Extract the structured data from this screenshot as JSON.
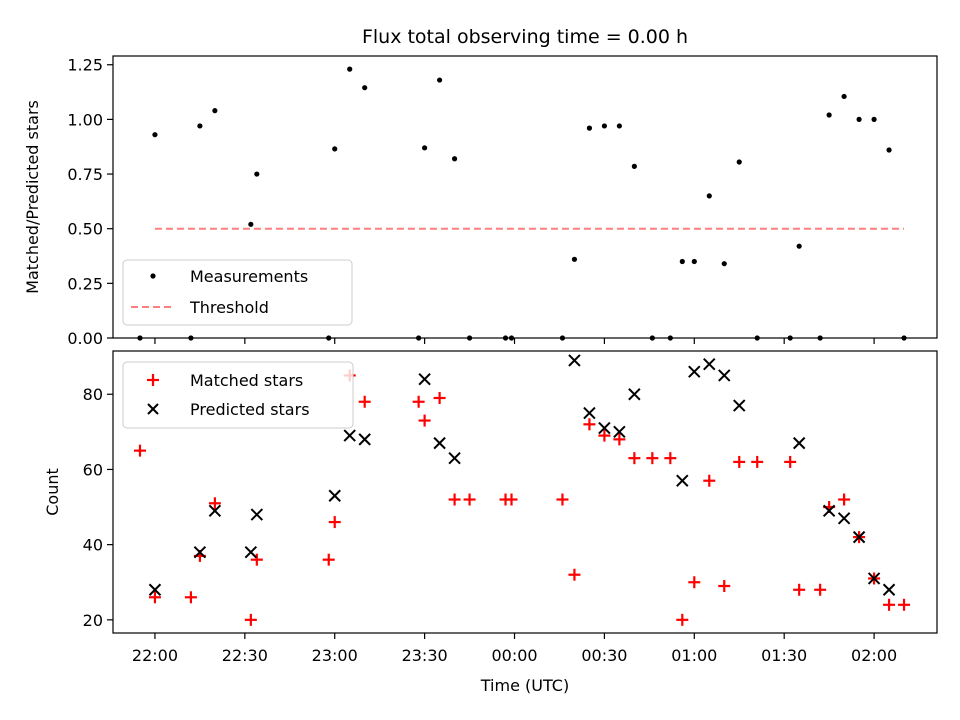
{
  "chart_data": [
    {
      "type": "scatter",
      "title": "Flux total observing time = 0.00 h",
      "xlabel": "",
      "ylabel": "Matched/Predicted stars",
      "ylim": [
        0,
        1.29
      ],
      "yticks": [
        "0.00",
        "0.25",
        "0.50",
        "0.75",
        "1.00",
        "1.25"
      ],
      "legend_placement": "bottom-left",
      "series": [
        {
          "name": "Measurements",
          "marker": "dot",
          "color": "#000000",
          "points": [
            [
              "21:55",
              0.0
            ],
            [
              "22:00",
              0.93
            ],
            [
              "22:12",
              0.0
            ],
            [
              "22:15",
              0.97
            ],
            [
              "22:20",
              1.04
            ],
            [
              "22:32",
              0.52
            ],
            [
              "22:34",
              0.75
            ],
            [
              "22:58",
              0.0
            ],
            [
              "23:00",
              0.865
            ],
            [
              "23:05",
              1.23
            ],
            [
              "23:10",
              1.145
            ],
            [
              "23:28",
              0.0
            ],
            [
              "23:30",
              0.87
            ],
            [
              "23:35",
              1.18
            ],
            [
              "23:40",
              0.82
            ],
            [
              "23:45",
              0.0
            ],
            [
              "23:57",
              0.0
            ],
            [
              "23:59",
              0.0
            ],
            [
              "00:16",
              0.0
            ],
            [
              "00:20",
              0.36
            ],
            [
              "00:25",
              0.96
            ],
            [
              "00:30",
              0.97
            ],
            [
              "00:35",
              0.97
            ],
            [
              "00:40",
              0.785
            ],
            [
              "00:46",
              0.0
            ],
            [
              "00:52",
              0.0
            ],
            [
              "00:56",
              0.35
            ],
            [
              "01:00",
              0.35
            ],
            [
              "01:05",
              0.65
            ],
            [
              "01:10",
              0.34
            ],
            [
              "01:15",
              0.805
            ],
            [
              "01:21",
              0.0
            ],
            [
              "01:32",
              0.0
            ],
            [
              "01:35",
              0.42
            ],
            [
              "01:42",
              0.0
            ],
            [
              "01:45",
              1.02
            ],
            [
              "01:50",
              1.105
            ],
            [
              "01:55",
              1.0
            ],
            [
              "02:00",
              1.0
            ],
            [
              "02:05",
              0.86
            ],
            [
              "02:10",
              0.0
            ]
          ]
        },
        {
          "name": "Threshold",
          "line_style": "dashed",
          "color": "#ff7f7f",
          "points": [
            [
              "22:00",
              0.5
            ],
            [
              "02:10",
              0.5
            ]
          ]
        }
      ]
    },
    {
      "type": "scatter",
      "title": "",
      "xlabel": "Time (UTC)",
      "ylabel": "Count",
      "ylim": [
        16.5,
        91.5
      ],
      "yticks": [
        "20",
        "40",
        "60",
        "80"
      ],
      "xlim": [
        "21:46",
        "02:21"
      ],
      "xticks": [
        "22:00",
        "22:30",
        "23:00",
        "23:30",
        "00:00",
        "00:30",
        "01:00",
        "01:30",
        "02:00"
      ],
      "legend_placement": "top-left",
      "series": [
        {
          "name": "Matched stars",
          "marker": "plus",
          "color": "#ff0000",
          "points": [
            [
              "21:55",
              65
            ],
            [
              "22:00",
              26
            ],
            [
              "22:12",
              26
            ],
            [
              "22:15",
              37
            ],
            [
              "22:20",
              51
            ],
            [
              "22:32",
              20
            ],
            [
              "22:34",
              36
            ],
            [
              "22:58",
              36
            ],
            [
              "23:00",
              46
            ],
            [
              "23:05",
              85
            ],
            [
              "23:10",
              78
            ],
            [
              "23:28",
              78
            ],
            [
              "23:30",
              73
            ],
            [
              "23:35",
              79
            ],
            [
              "23:40",
              52
            ],
            [
              "23:45",
              52
            ],
            [
              "23:57",
              52
            ],
            [
              "23:59",
              52
            ],
            [
              "00:16",
              52
            ],
            [
              "00:20",
              32
            ],
            [
              "00:25",
              72
            ],
            [
              "00:30",
              69
            ],
            [
              "00:35",
              68
            ],
            [
              "00:40",
              63
            ],
            [
              "00:46",
              63
            ],
            [
              "00:52",
              63
            ],
            [
              "00:56",
              20
            ],
            [
              "01:00",
              30
            ],
            [
              "01:05",
              57
            ],
            [
              "01:10",
              29
            ],
            [
              "01:15",
              62
            ],
            [
              "01:21",
              62
            ],
            [
              "01:32",
              62
            ],
            [
              "01:35",
              28
            ],
            [
              "01:42",
              28
            ],
            [
              "01:45",
              50
            ],
            [
              "01:50",
              52
            ],
            [
              "01:55",
              42
            ],
            [
              "02:00",
              31
            ],
            [
              "02:05",
              24
            ],
            [
              "02:10",
              24
            ]
          ]
        },
        {
          "name": "Predicted stars",
          "marker": "x",
          "color": "#000000",
          "points": [
            [
              "22:00",
              28
            ],
            [
              "22:15",
              38
            ],
            [
              "22:20",
              49
            ],
            [
              "22:32",
              38
            ],
            [
              "22:34",
              48
            ],
            [
              "23:00",
              53
            ],
            [
              "23:05",
              69
            ],
            [
              "23:10",
              68
            ],
            [
              "23:30",
              84
            ],
            [
              "23:35",
              67
            ],
            [
              "23:40",
              63
            ],
            [
              "00:20",
              89
            ],
            [
              "00:25",
              75
            ],
            [
              "00:30",
              71
            ],
            [
              "00:35",
              70
            ],
            [
              "00:40",
              80
            ],
            [
              "00:56",
              57
            ],
            [
              "01:00",
              86
            ],
            [
              "01:05",
              88
            ],
            [
              "01:10",
              85
            ],
            [
              "01:15",
              77
            ],
            [
              "01:35",
              67
            ],
            [
              "01:45",
              49
            ],
            [
              "01:50",
              47
            ],
            [
              "01:55",
              42
            ],
            [
              "02:00",
              31
            ],
            [
              "02:05",
              28
            ]
          ]
        }
      ]
    }
  ]
}
